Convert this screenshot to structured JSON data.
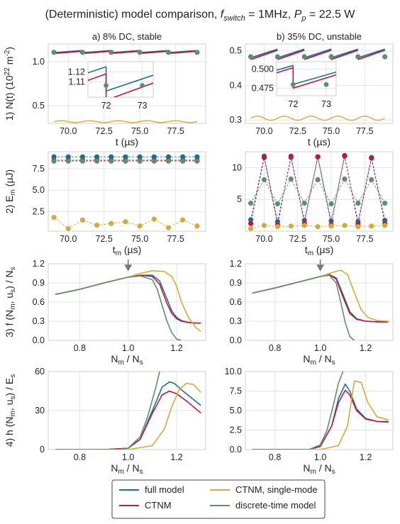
{
  "figure": {
    "title": "(Deterministic) model comparison, f_switch = 1MHz, P_p = 22.5 W"
  },
  "colors": {
    "full": "#1a6f9a",
    "ctnm": "#c0173e",
    "single": "#d4aa3e",
    "discrete": "#5e8f6b",
    "grid": "#e3e3e3",
    "frame": "#cfcfcf"
  },
  "legend": {
    "items": [
      {
        "key": "full",
        "label": "full model"
      },
      {
        "key": "ctnm",
        "label": "CTNM"
      },
      {
        "key": "single",
        "label": "CTNM, single-mode"
      },
      {
        "key": "discrete",
        "label": "discrete-time model"
      }
    ]
  },
  "chart_data": [
    {
      "id": "1a",
      "type": "line",
      "title": "a) 8% DC, stable",
      "ylabel": "1) N(t) (10^22 m^-2)",
      "xlabel": "t (µs)",
      "xlim": [
        68.6,
        79.6
      ],
      "ylim": [
        0.3,
        1.2
      ],
      "xticks": [
        70.0,
        72.5,
        75.0,
        77.5
      ],
      "xtick_labels": [
        "70.0",
        "72.5",
        "75.0",
        "77.5"
      ],
      "yticks": [
        0.5,
        1.0
      ],
      "ytick_labels": [
        "0.5",
        "1.0"
      ],
      "series": [
        {
          "name": "full model",
          "key": "full",
          "sawtooth": {
            "t0": 69.0,
            "t1": 79.0,
            "period": 2.0,
            "lo": 1.101,
            "hi": 1.125
          }
        },
        {
          "name": "CTNM",
          "key": "ctnm",
          "sawtooth": {
            "t0": 69.0,
            "t1": 79.0,
            "period": 2.0,
            "lo": 1.092,
            "hi": 1.118
          }
        },
        {
          "name": "CTNM, single-mode",
          "key": "single",
          "wave": {
            "t0": 69.0,
            "t1": 79.0,
            "base": 0.32,
            "amp": 0.01,
            "period": 2.0
          }
        },
        {
          "name": "discrete-time model",
          "key": "discrete",
          "points": {
            "t0": 69.0,
            "t1": 79.0,
            "step": 2.0,
            "y": 1.105
          }
        }
      ],
      "inset": {
        "xlim": [
          71.5,
          73.3
        ],
        "ylim": [
          1.095,
          1.13
        ],
        "xticks": [
          72,
          73
        ],
        "xtick_labels": [
          "72",
          "73"
        ],
        "yticks": [
          1.11,
          1.12
        ],
        "ytick_labels": [
          "1.11",
          "1.12"
        ]
      }
    },
    {
      "id": "1b",
      "type": "line",
      "title": "b) 35% DC, unstable",
      "ylabel": "",
      "xlabel": "t (µs)",
      "xlim": [
        68.6,
        79.6
      ],
      "ylim": [
        0.29,
        0.52
      ],
      "xticks": [
        70.0,
        72.5,
        75.0,
        77.5
      ],
      "xtick_labels": [
        "70.0",
        "72.5",
        "75.0",
        "77.5"
      ],
      "yticks": [
        0.3,
        0.4,
        0.5
      ],
      "ytick_labels": [
        "0.3",
        "0.4",
        "0.5"
      ],
      "series": [
        {
          "name": "full model",
          "key": "full",
          "sawtooth": {
            "t0": 69.0,
            "t1": 79.0,
            "period": 2.0,
            "lo": 0.48,
            "hi": 0.505
          }
        },
        {
          "name": "CTNM",
          "key": "ctnm",
          "sawtooth": {
            "t0": 69.0,
            "t1": 79.0,
            "period": 2.0,
            "lo": 0.475,
            "hi": 0.502
          }
        },
        {
          "name": "CTNM, single-mode",
          "key": "single",
          "wave": {
            "t0": 69.0,
            "t1": 79.0,
            "base": 0.305,
            "amp": 0.006,
            "period": 2.0
          }
        },
        {
          "name": "discrete-time model",
          "key": "discrete",
          "points": {
            "t0": 69.0,
            "t1": 79.0,
            "step": 2.0,
            "y": 0.483
          }
        }
      ],
      "inset": {
        "xlim": [
          71.5,
          73.3
        ],
        "ylim": [
          0.465,
          0.51
        ],
        "xticks": [
          72,
          73
        ],
        "xtick_labels": [
          "72",
          "73"
        ],
        "yticks": [
          0.475,
          0.5
        ],
        "ytick_labels": [
          "0.475",
          "0.500"
        ]
      }
    },
    {
      "id": "2a",
      "type": "scatter",
      "ylabel": "2) E_m (µJ)",
      "xlabel": "t_m (µs)",
      "xlim": [
        68.6,
        79.6
      ],
      "ylim": [
        0.2,
        9.5
      ],
      "xticks": [
        70.0,
        72.5,
        75.0,
        77.5
      ],
      "xtick_labels": [
        "70.0",
        "72.5",
        "75.0",
        "77.5"
      ],
      "yticks": [
        2.5,
        5.0,
        7.5
      ],
      "ytick_labels": [
        "2.5",
        "5.0",
        "7.5"
      ],
      "x": [
        69.0,
        70.0,
        71.0,
        72.0,
        73.0,
        74.0,
        75.0,
        76.0,
        77.0,
        78.0,
        79.0
      ],
      "series": [
        {
          "name": "full model",
          "key": "full",
          "y": [
            8.9,
            8.9,
            8.9,
            8.9,
            8.9,
            8.9,
            8.9,
            8.9,
            8.9,
            8.9,
            8.9
          ]
        },
        {
          "name": "CTNM",
          "key": "ctnm",
          "y": [
            8.5,
            8.5,
            8.5,
            8.5,
            8.5,
            8.5,
            8.5,
            8.5,
            8.5,
            8.5,
            8.5
          ]
        },
        {
          "name": "CTNM, single-mode",
          "key": "single",
          "y": [
            1.8,
            0.5,
            1.5,
            0.9,
            1.1,
            1.3,
            0.8,
            1.6,
            0.6,
            1.5,
            0.8
          ]
        },
        {
          "name": "discrete-time model",
          "key": "discrete",
          "y": [
            8.4,
            8.4,
            8.4,
            8.4,
            8.4,
            8.4,
            8.4,
            8.4,
            8.4,
            8.4,
            8.4
          ]
        }
      ]
    },
    {
      "id": "2b",
      "type": "scatter",
      "ylabel": "",
      "xlabel": "t_m (µs)",
      "xlim": [
        68.6,
        79.6
      ],
      "ylim": [
        0.0,
        12.5
      ],
      "xticks": [
        70.0,
        72.5,
        75.0,
        77.5
      ],
      "xtick_labels": [
        "70.0",
        "72.5",
        "75.0",
        "77.5"
      ],
      "yticks": [
        5,
        10
      ],
      "ytick_labels": [
        "5",
        "10"
      ],
      "x": [
        69.0,
        70.0,
        71.0,
        72.0,
        73.0,
        74.0,
        75.0,
        76.0,
        77.0,
        78.0,
        79.0
      ],
      "series": [
        {
          "name": "full model",
          "key": "full",
          "y": [
            1.8,
            11.8,
            1.5,
            11.6,
            1.7,
            11.7,
            1.6,
            11.8,
            1.5,
            11.6,
            1.7
          ]
        },
        {
          "name": "CTNM",
          "key": "ctnm",
          "y": [
            1.2,
            11.6,
            1.0,
            11.8,
            1.2,
            11.7,
            1.0,
            11.9,
            1.1,
            11.5,
            1.2
          ]
        },
        {
          "name": "CTNM, single-mode",
          "key": "single",
          "y": [
            0.4,
            0.9,
            0.7,
            0.8,
            0.9,
            0.7,
            0.8,
            0.9,
            0.7,
            0.8,
            0.9
          ]
        },
        {
          "name": "discrete-time model",
          "key": "discrete",
          "y": [
            4.4,
            8.1,
            4.3,
            8.2,
            4.4,
            8.1,
            4.3,
            8.2,
            4.4,
            8.1,
            4.4
          ]
        }
      ]
    },
    {
      "id": "3a",
      "type": "line",
      "ylabel": "3) f (N_m, u_s) / N_s",
      "xlabel": "N_m / N_s",
      "xlim": [
        0.67,
        1.32
      ],
      "ylim": [
        0.0,
        1.2
      ],
      "xticks": [
        0.8,
        1.0,
        1.2
      ],
      "xtick_labels": [
        "0.8",
        "1.0",
        "1.2"
      ],
      "yticks": [
        0.0,
        0.3,
        0.6,
        0.9,
        1.2
      ],
      "ytick_labels": [
        "0.0",
        "0.3",
        "0.6",
        "0.9",
        "1.2"
      ],
      "arrow_x": 1.0,
      "series": [
        {
          "name": "full model",
          "key": "full",
          "x": [
            0.7,
            0.8,
            0.9,
            1.0,
            1.05,
            1.1,
            1.13,
            1.16,
            1.18,
            1.2,
            1.22,
            1.25,
            1.28,
            1.3
          ],
          "y": [
            0.72,
            0.8,
            0.9,
            0.99,
            1.02,
            1.02,
            0.93,
            0.65,
            0.46,
            0.36,
            0.31,
            0.28,
            0.27,
            0.27
          ]
        },
        {
          "name": "CTNM",
          "key": "ctnm",
          "x": [
            0.7,
            0.8,
            0.9,
            1.0,
            1.05,
            1.1,
            1.13,
            1.16,
            1.18,
            1.2,
            1.22,
            1.25,
            1.28,
            1.3
          ],
          "y": [
            0.72,
            0.8,
            0.9,
            0.99,
            1.02,
            1.0,
            0.88,
            0.58,
            0.42,
            0.34,
            0.3,
            0.28,
            0.27,
            0.27
          ]
        },
        {
          "name": "CTNM, single-mode",
          "key": "single",
          "x": [
            0.7,
            0.8,
            0.9,
            1.0,
            1.05,
            1.1,
            1.15,
            1.18,
            1.2,
            1.22,
            1.25,
            1.28,
            1.3
          ],
          "y": [
            0.72,
            0.8,
            0.9,
            0.99,
            1.05,
            1.09,
            1.08,
            1.0,
            0.85,
            0.6,
            0.35,
            0.2,
            0.14
          ]
        },
        {
          "name": "discrete-time model",
          "key": "discrete",
          "x": [
            0.7,
            0.8,
            0.9,
            1.0,
            1.05,
            1.1,
            1.12,
            1.14,
            1.16,
            1.18,
            1.2,
            1.22
          ],
          "y": [
            0.72,
            0.8,
            0.9,
            0.99,
            1.01,
            0.95,
            0.8,
            0.55,
            0.3,
            0.12,
            0.02,
            0.0
          ]
        }
      ]
    },
    {
      "id": "3b",
      "type": "line",
      "ylabel": "",
      "xlabel": "N_m / N_s",
      "xlim": [
        0.67,
        1.32
      ],
      "ylim": [
        0.0,
        1.2
      ],
      "xticks": [
        0.8,
        1.0,
        1.2
      ],
      "xtick_labels": [
        "0.8",
        "1.0",
        "1.2"
      ],
      "yticks": [
        0.0,
        0.3,
        0.6,
        0.9,
        1.2
      ],
      "ytick_labels": [
        "0.0",
        "0.3",
        "0.6",
        "0.9",
        "1.2"
      ],
      "arrow_x": 1.0,
      "series": [
        {
          "name": "full model",
          "key": "full",
          "x": [
            0.7,
            0.8,
            0.9,
            1.0,
            1.04,
            1.07,
            1.1,
            1.13,
            1.16,
            1.2,
            1.25,
            1.3
          ],
          "y": [
            0.74,
            0.82,
            0.91,
            1.0,
            1.03,
            0.98,
            0.72,
            0.45,
            0.34,
            0.3,
            0.29,
            0.29
          ]
        },
        {
          "name": "CTNM",
          "key": "ctnm",
          "x": [
            0.7,
            0.8,
            0.9,
            1.0,
            1.04,
            1.07,
            1.1,
            1.13,
            1.16,
            1.2,
            1.25,
            1.3
          ],
          "y": [
            0.74,
            0.82,
            0.91,
            1.0,
            1.03,
            0.96,
            0.68,
            0.42,
            0.33,
            0.3,
            0.29,
            0.29
          ]
        },
        {
          "name": "CTNM, single-mode",
          "key": "single",
          "x": [
            0.7,
            0.8,
            0.9,
            1.0,
            1.05,
            1.09,
            1.12,
            1.15,
            1.18,
            1.21,
            1.25,
            1.3
          ],
          "y": [
            0.74,
            0.82,
            0.91,
            1.0,
            1.06,
            1.1,
            1.03,
            0.75,
            0.48,
            0.36,
            0.31,
            0.3
          ]
        },
        {
          "name": "discrete-time model",
          "key": "discrete",
          "x": [
            0.7,
            0.8,
            0.9,
            1.0,
            1.04,
            1.07,
            1.09,
            1.11,
            1.13,
            1.15
          ],
          "y": [
            0.74,
            0.82,
            0.91,
            1.0,
            1.02,
            0.9,
            0.6,
            0.28,
            0.06,
            0.0
          ]
        }
      ]
    },
    {
      "id": "4a",
      "type": "line",
      "ylabel": "4) h (N_m, u_s) / E_s",
      "xlabel": "N_m / N_s",
      "xlim": [
        0.67,
        1.32
      ],
      "ylim": [
        0,
        60
      ],
      "xticks": [
        0.8,
        1.0,
        1.2
      ],
      "xtick_labels": [
        "0.8",
        "1.0",
        "1.2"
      ],
      "yticks": [
        0,
        30,
        60
      ],
      "ytick_labels": [
        "0",
        "30",
        "60"
      ],
      "series": [
        {
          "name": "full model",
          "key": "full",
          "x": [
            0.7,
            0.9,
            1.0,
            1.05,
            1.1,
            1.14,
            1.17,
            1.19,
            1.22,
            1.26,
            1.3
          ],
          "y": [
            0,
            0,
            1,
            8,
            30,
            48,
            52,
            51,
            46,
            40,
            34
          ]
        },
        {
          "name": "CTNM",
          "key": "ctnm",
          "x": [
            0.7,
            0.9,
            1.0,
            1.05,
            1.1,
            1.14,
            1.17,
            1.2,
            1.25,
            1.3
          ],
          "y": [
            0,
            0,
            1,
            8,
            28,
            42,
            45,
            43,
            36,
            28
          ]
        },
        {
          "name": "CTNM, single-mode",
          "key": "single",
          "x": [
            0.7,
            1.0,
            1.1,
            1.15,
            1.18,
            1.21,
            1.24,
            1.27,
            1.3
          ],
          "y": [
            0,
            0,
            3,
            16,
            33,
            46,
            51,
            50,
            44
          ]
        },
        {
          "name": "discrete-time model",
          "key": "discrete",
          "x": [
            0.7,
            0.95,
            1.0,
            1.05,
            1.08,
            1.11,
            1.13
          ],
          "y": [
            0,
            0,
            1,
            10,
            25,
            45,
            60
          ]
        }
      ]
    },
    {
      "id": "4b",
      "type": "line",
      "ylabel": "",
      "xlabel": "N_m / N_s",
      "xlim": [
        0.67,
        1.32
      ],
      "ylim": [
        0,
        10
      ],
      "xticks": [
        0.8,
        1.0,
        1.2
      ],
      "xtick_labels": [
        "0.8",
        "1.0",
        "1.2"
      ],
      "yticks": [
        0.0,
        2.5,
        5.0,
        7.5,
        10.0
      ],
      "ytick_labels": [
        "0.0",
        "2.5",
        "5.0",
        "7.5",
        "10.0"
      ],
      "series": [
        {
          "name": "full model",
          "key": "full",
          "x": [
            0.7,
            0.95,
            1.0,
            1.05,
            1.08,
            1.11,
            1.13,
            1.16,
            1.2,
            1.25,
            1.3
          ],
          "y": [
            0,
            0,
            0.4,
            3,
            6.5,
            8.4,
            7.5,
            5.2,
            4.0,
            3.6,
            3.6
          ]
        },
        {
          "name": "CTNM",
          "key": "ctnm",
          "x": [
            0.7,
            0.95,
            1.0,
            1.05,
            1.08,
            1.11,
            1.13,
            1.16,
            1.2,
            1.25,
            1.3
          ],
          "y": [
            0,
            0,
            0.4,
            3,
            6,
            7.6,
            7.0,
            5.0,
            3.9,
            3.6,
            3.5
          ]
        },
        {
          "name": "CTNM, single-mode",
          "key": "single",
          "x": [
            0.7,
            1.0,
            1.08,
            1.12,
            1.15,
            1.18,
            1.21,
            1.25,
            1.3
          ],
          "y": [
            0,
            0,
            0.5,
            3,
            8.8,
            8.6,
            6,
            4.2,
            3.8
          ]
        },
        {
          "name": "discrete-time model",
          "key": "discrete",
          "x": [
            0.7,
            0.95,
            1.0,
            1.03,
            1.06,
            1.08,
            1.1
          ],
          "y": [
            0,
            0,
            0.6,
            2.5,
            6,
            8.5,
            10
          ]
        }
      ]
    }
  ]
}
